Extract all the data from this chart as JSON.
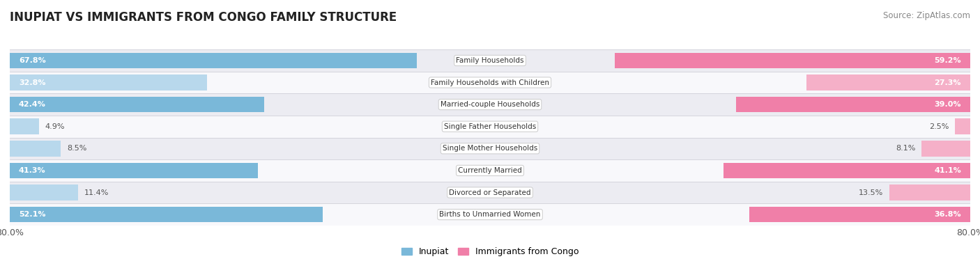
{
  "title": "INUPIAT VS IMMIGRANTS FROM CONGO FAMILY STRUCTURE",
  "source": "Source: ZipAtlas.com",
  "categories": [
    "Family Households",
    "Family Households with Children",
    "Married-couple Households",
    "Single Father Households",
    "Single Mother Households",
    "Currently Married",
    "Divorced or Separated",
    "Births to Unmarried Women"
  ],
  "inupiat_values": [
    67.8,
    32.8,
    42.4,
    4.9,
    8.5,
    41.3,
    11.4,
    52.1
  ],
  "congo_values": [
    59.2,
    27.3,
    39.0,
    2.5,
    8.1,
    41.1,
    13.5,
    36.8
  ],
  "inupiat_color": "#7ab8d9",
  "congo_color": "#f07fa8",
  "inupiat_color_light": "#b8d8ec",
  "congo_color_light": "#f5b0c8",
  "inupiat_label": "Inupiat",
  "congo_label": "Immigrants from Congo",
  "x_max": 80.0,
  "row_bg_even": "#ececf2",
  "row_bg_odd": "#f8f8fb",
  "title_fontsize": 12,
  "source_fontsize": 8.5,
  "bar_label_fontsize": 8,
  "category_fontsize": 7.5,
  "bar_height": 0.72,
  "large_threshold": 15
}
